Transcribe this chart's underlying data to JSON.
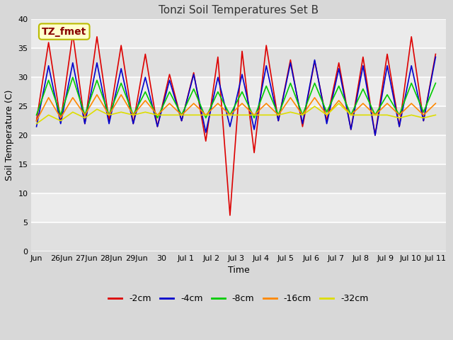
{
  "title": "Tonzi Soil Temperatures Set B",
  "xlabel": "Time",
  "ylabel": "Soil Temperature (C)",
  "ylim": [
    0,
    40
  ],
  "yticks": [
    0,
    5,
    10,
    15,
    20,
    25,
    30,
    35,
    40
  ],
  "fig_bg": "#d8d8d8",
  "plot_bg": "#e8e8e8",
  "annotation_text": "TZ_fmet",
  "annotation_bg": "#ffffcc",
  "annotation_border": "#bbbb00",
  "annotation_color": "#880000",
  "colors": {
    "-2cm": "#dd0000",
    "-4cm": "#0000cc",
    "-8cm": "#00cc00",
    "-16cm": "#ff8800",
    "-32cm": "#dddd00"
  },
  "legend_labels": [
    "-2cm",
    "-4cm",
    "-8cm",
    "-16cm",
    "-32cm"
  ],
  "xtick_labels": [
    "Jun",
    "26Jun",
    "27Jun",
    "28Jun",
    "29Jun",
    "30",
    "Jul 1",
    "Jul 2",
    "Jul 3",
    "Jul 4",
    "Jul 5",
    "Jul 6",
    "Jul 7",
    "Jul 8",
    "Jul 9",
    "Jul 10",
    "Jul 11"
  ],
  "xtick_positions": [
    0,
    1,
    2,
    3,
    4,
    5,
    6,
    7,
    8,
    9,
    10,
    11,
    12,
    13,
    14,
    15,
    16
  ],
  "series": {
    "-2cm": [
      22.5,
      36.0,
      22.5,
      37.5,
      22.0,
      37.0,
      22.5,
      35.5,
      22.0,
      34.0,
      21.5,
      30.5,
      22.5,
      30.8,
      19.0,
      33.5,
      6.2,
      34.5,
      17.0,
      35.5,
      22.5,
      33.0,
      21.5,
      32.8,
      22.5,
      32.5,
      21.0,
      33.5,
      20.0,
      34.0,
      21.5,
      37.0,
      22.5,
      34.0
    ],
    "-4cm": [
      21.5,
      32.0,
      22.0,
      32.5,
      22.0,
      32.5,
      22.0,
      31.5,
      22.0,
      30.0,
      21.5,
      29.5,
      22.5,
      30.5,
      20.5,
      30.0,
      21.5,
      30.5,
      21.0,
      32.0,
      22.5,
      32.5,
      22.0,
      33.0,
      22.0,
      31.5,
      21.0,
      32.0,
      20.0,
      32.0,
      21.5,
      32.0,
      22.5,
      33.5
    ],
    "-8cm": [
      23.5,
      29.5,
      23.5,
      30.0,
      23.5,
      29.5,
      23.5,
      29.0,
      23.5,
      27.5,
      23.0,
      27.5,
      23.5,
      28.0,
      23.0,
      27.5,
      23.5,
      27.5,
      23.0,
      28.5,
      23.5,
      29.0,
      23.5,
      29.0,
      24.0,
      28.5,
      23.5,
      28.0,
      23.5,
      27.0,
      23.5,
      29.0,
      24.0,
      29.0
    ],
    "-16cm": [
      22.5,
      26.5,
      23.0,
      26.5,
      23.5,
      27.0,
      23.5,
      27.0,
      23.5,
      26.0,
      23.5,
      25.5,
      23.5,
      25.5,
      23.5,
      25.5,
      23.5,
      25.5,
      23.5,
      25.5,
      23.5,
      26.5,
      23.5,
      26.5,
      23.5,
      26.0,
      23.5,
      25.5,
      23.5,
      25.5,
      23.5,
      25.5,
      23.5,
      25.5
    ],
    "-32cm": [
      22.0,
      23.5,
      22.5,
      24.0,
      23.0,
      24.5,
      23.5,
      24.0,
      23.5,
      24.0,
      23.5,
      23.5,
      23.5,
      23.5,
      23.5,
      23.5,
      23.5,
      23.5,
      23.5,
      23.5,
      23.5,
      24.0,
      23.5,
      25.0,
      23.5,
      25.5,
      23.5,
      23.5,
      23.5,
      23.5,
      23.0,
      23.5,
      23.0,
      23.5
    ]
  },
  "n_points": 34,
  "x_start": 0.0,
  "x_end": 16.0,
  "xlim": [
    -0.2,
    16.4
  ]
}
